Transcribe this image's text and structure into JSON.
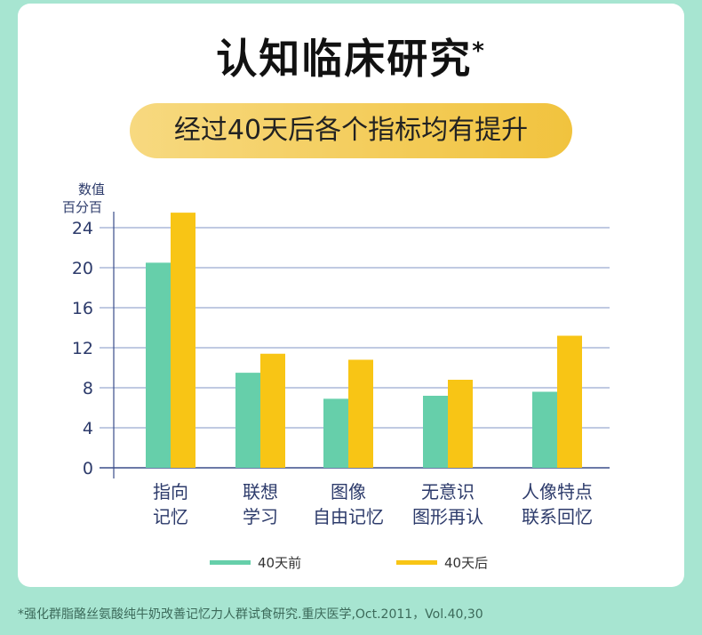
{
  "title": "认知临床研究",
  "title_mark": "*",
  "subtitle": "经过40天后各个指标均有提升",
  "chart_data": {
    "type": "bar",
    "ylabel_line1": "数值",
    "ylabel_line2": "百分百",
    "ylim": [
      0,
      25
    ],
    "yticks": [
      "0",
      "4",
      "8",
      "12",
      "16",
      "20",
      "24"
    ],
    "categories": [
      [
        "指向",
        "记忆"
      ],
      [
        "联想",
        "学习"
      ],
      [
        "图像",
        "自由记忆"
      ],
      [
        "无意识",
        "图形再认"
      ],
      [
        "人像特点",
        "联系回忆"
      ]
    ],
    "series": [
      {
        "name": "40天前",
        "color": "#66cfaa",
        "values": [
          20.5,
          9.5,
          6.9,
          7.2,
          7.6
        ]
      },
      {
        "name": "40天后",
        "color": "#f8c515",
        "values": [
          25.5,
          11.4,
          10.8,
          8.8,
          13.2
        ]
      }
    ],
    "legend_position": "bottom"
  },
  "footnote": "*强化群脂酪丝氨酸纯牛奶改善记忆力人群试食研究.重庆医学,Oct.2011，Vol.40,30"
}
